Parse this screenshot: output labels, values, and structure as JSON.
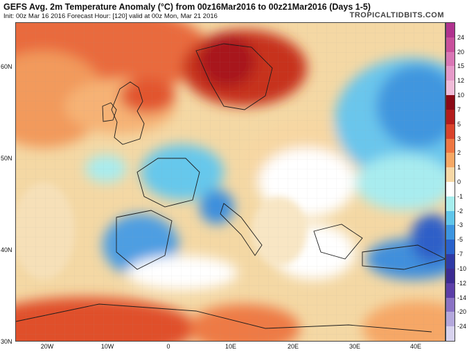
{
  "header": {
    "title": "GEFS Avg. 2m Temperature Anomaly (°C) from 00z16Mar2016 to 00z21Mar2016 (Days 1-5)",
    "subtitle": "Init: 00z Mar 16 2016   Forecast Hour: [120]   valid at 00z Mon, Mar 21 2016",
    "brand": "TROPICALTIDBITS.COM"
  },
  "axes": {
    "lat_labels": [
      "60N",
      "50N",
      "40N",
      "30N"
    ],
    "lon_labels": [
      "20W",
      "10W",
      "0",
      "10E",
      "20E",
      "30E",
      "40E"
    ]
  },
  "colorbar": {
    "labels": [
      "24",
      "20",
      "15",
      "12",
      "10",
      "7",
      "5",
      "3",
      "2",
      "1",
      "0",
      "-1",
      "-2",
      "-3",
      "-5",
      "-7",
      "-10",
      "-12",
      "-14",
      "-20",
      "-24"
    ],
    "colors": [
      "#b0328f",
      "#c8509c",
      "#d977b5",
      "#e59ac9",
      "#f0bcd8",
      "#8b0a16",
      "#b31c1c",
      "#d9432b",
      "#ee7743",
      "#f6a865",
      "#f7d8a6",
      "#ffffff",
      "#a7eeee",
      "#61c6ea",
      "#3d95e0",
      "#2a62cb",
      "#2f3aa5",
      "#3c2b92",
      "#5c3fa8",
      "#8a72c4",
      "#b4a8dc",
      "#d8d3ee"
    ]
  }
}
